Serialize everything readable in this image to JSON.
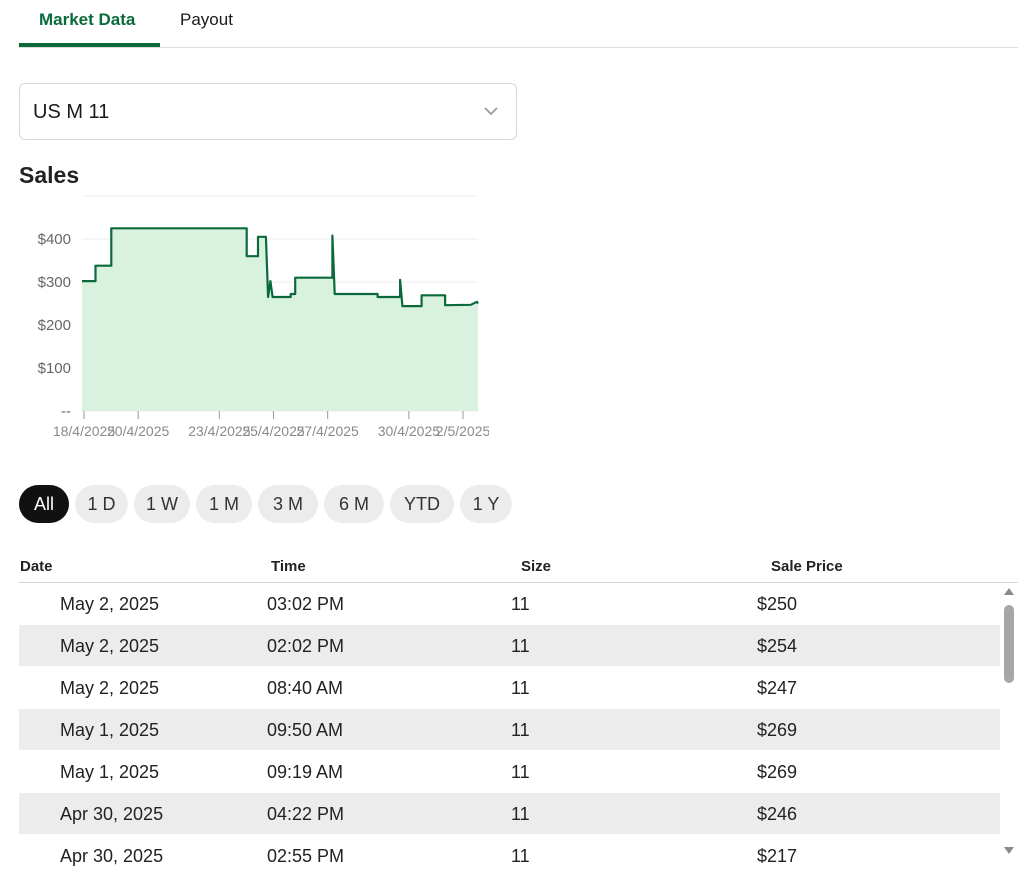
{
  "tabs": [
    {
      "label": "Market Data",
      "active": true
    },
    {
      "label": "Payout",
      "active": false
    }
  ],
  "size_select": {
    "value": "US M 11",
    "icon": "chevron-down-icon"
  },
  "sales_title": "Sales",
  "chart_data": {
    "type": "area",
    "y_ticks": [
      "--",
      "$100",
      "$200",
      "$300",
      "$400"
    ],
    "x_ticks": [
      "18/4/2025",
      "20/4/2025",
      "23/4/2025",
      "25/4/2025",
      "27/4/2025",
      "30/4/2025",
      "2/5/2025"
    ],
    "ylim": [
      0,
      500
    ],
    "xlim": [
      "2025-04-18",
      "2025-05-02T15:02"
    ],
    "series": [
      {
        "values": [
          [
            "2025-04-18",
            302
          ],
          [
            "2025-04-18T12:00",
            302
          ],
          [
            "2025-04-18T12:00",
            338
          ],
          [
            "2025-04-19T02:00",
            338
          ],
          [
            "2025-04-19T02:00",
            425
          ],
          [
            "2025-04-24T02:00",
            425
          ],
          [
            "2025-04-24T02:00",
            360
          ],
          [
            "2025-04-24T12:00",
            360
          ],
          [
            "2025-04-24T12:00",
            405
          ],
          [
            "2025-04-24T19:00",
            405
          ],
          [
            "2025-04-24T21:00",
            265
          ],
          [
            "2025-04-24T23:00",
            302
          ],
          [
            "2025-04-25T01:00",
            265
          ],
          [
            "2025-04-25T17:00",
            265
          ],
          [
            "2025-04-25T17:00",
            272
          ],
          [
            "2025-04-25T21:00",
            272
          ],
          [
            "2025-04-25T21:00",
            310
          ],
          [
            "2025-04-27T06:00",
            310
          ],
          [
            "2025-04-27T06:00",
            408
          ],
          [
            "2025-04-27T08:00",
            272
          ],
          [
            "2025-04-28T22:00",
            272
          ],
          [
            "2025-04-28T22:00",
            265
          ],
          [
            "2025-04-29T18:00",
            265
          ],
          [
            "2025-04-29T18:00",
            305
          ],
          [
            "2025-04-29T20:00",
            244
          ],
          [
            "2025-04-30T13:00",
            244
          ],
          [
            "2025-04-30T13:00",
            269
          ],
          [
            "2025-05-01T09:50",
            269
          ],
          [
            "2025-05-01T09:50",
            246
          ],
          [
            "2025-05-02T08:40",
            247
          ],
          [
            "2025-05-02T14:02",
            254
          ],
          [
            "2025-05-02T15:02",
            250
          ]
        ]
      }
    ],
    "colors": {
      "line": "#0b6a3b",
      "fill": "#d9f2e0"
    },
    "grid": true
  },
  "ranges": [
    "All",
    "1 D",
    "1 W",
    "1 M",
    "3 M",
    "6 M",
    "YTD",
    "1 Y"
  ],
  "active_range": "All",
  "table": {
    "columns": [
      "Date",
      "Time",
      "Size",
      "Sale Price"
    ],
    "rows": [
      [
        "May 2, 2025",
        "03:02 PM",
        "11",
        "$250"
      ],
      [
        "May 2, 2025",
        "02:02 PM",
        "11",
        "$254"
      ],
      [
        "May 2, 2025",
        "08:40 AM",
        "11",
        "$247"
      ],
      [
        "May 1, 2025",
        "09:50 AM",
        "11",
        "$269"
      ],
      [
        "May 1, 2025",
        "09:19 AM",
        "11",
        "$269"
      ],
      [
        "Apr 30, 2025",
        "04:22 PM",
        "11",
        "$246"
      ],
      [
        "Apr 30, 2025",
        "02:55 PM",
        "11",
        "$217"
      ]
    ]
  },
  "colors": {
    "accent": "#0b6a3b",
    "row_alt": "#ececec"
  }
}
